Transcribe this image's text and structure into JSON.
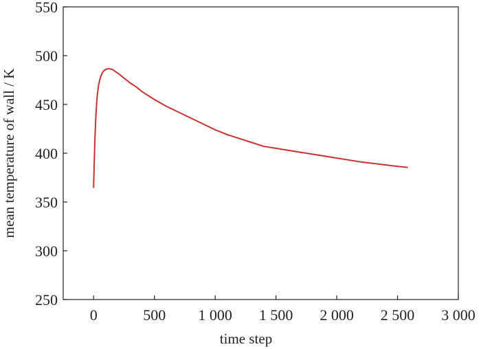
{
  "chart_data": {
    "type": "line",
    "title": "",
    "xlabel": "time step",
    "ylabel": "mean temperature of wall / K",
    "xlim": [
      -250,
      3000
    ],
    "ylim": [
      250,
      550
    ],
    "x_ticks": [
      0,
      500,
      1000,
      1500,
      2000,
      2500,
      3000
    ],
    "x_tick_labels": [
      "0",
      "500",
      "1 000",
      "1 500",
      "2 000",
      "2 500",
      "3 000"
    ],
    "y_ticks": [
      250,
      300,
      350,
      400,
      450,
      500,
      550
    ],
    "y_tick_labels": [
      "250",
      "300",
      "350",
      "400",
      "450",
      "500",
      "550"
    ],
    "grid": false,
    "legend": "none",
    "series": [
      {
        "color": "#c8322e",
        "x": [
          0,
          3,
          6,
          10,
          15,
          20,
          25,
          30,
          40,
          50,
          60,
          70,
          80,
          90,
          100,
          110,
          120,
          130,
          140,
          150,
          160,
          175,
          200,
          250,
          300,
          350,
          400,
          500,
          600,
          700,
          800,
          900,
          1000,
          1100,
          1200,
          1300,
          1400,
          1500,
          1600,
          1700,
          1800,
          1900,
          2000,
          2100,
          2200,
          2300,
          2400,
          2500,
          2580
        ],
        "y": [
          365,
          380,
          395,
          412,
          428,
          441,
          451,
          459,
          469,
          475,
          479,
          482,
          484,
          485,
          486,
          486.3,
          486.5,
          486.5,
          486.3,
          486,
          485.5,
          484,
          482,
          477,
          472,
          468,
          463,
          455,
          448,
          442,
          436,
          430,
          424,
          419,
          415,
          411,
          407,
          405,
          403,
          401,
          399,
          397,
          395,
          393,
          391,
          389.5,
          388,
          386.5,
          385.5
        ]
      }
    ]
  }
}
